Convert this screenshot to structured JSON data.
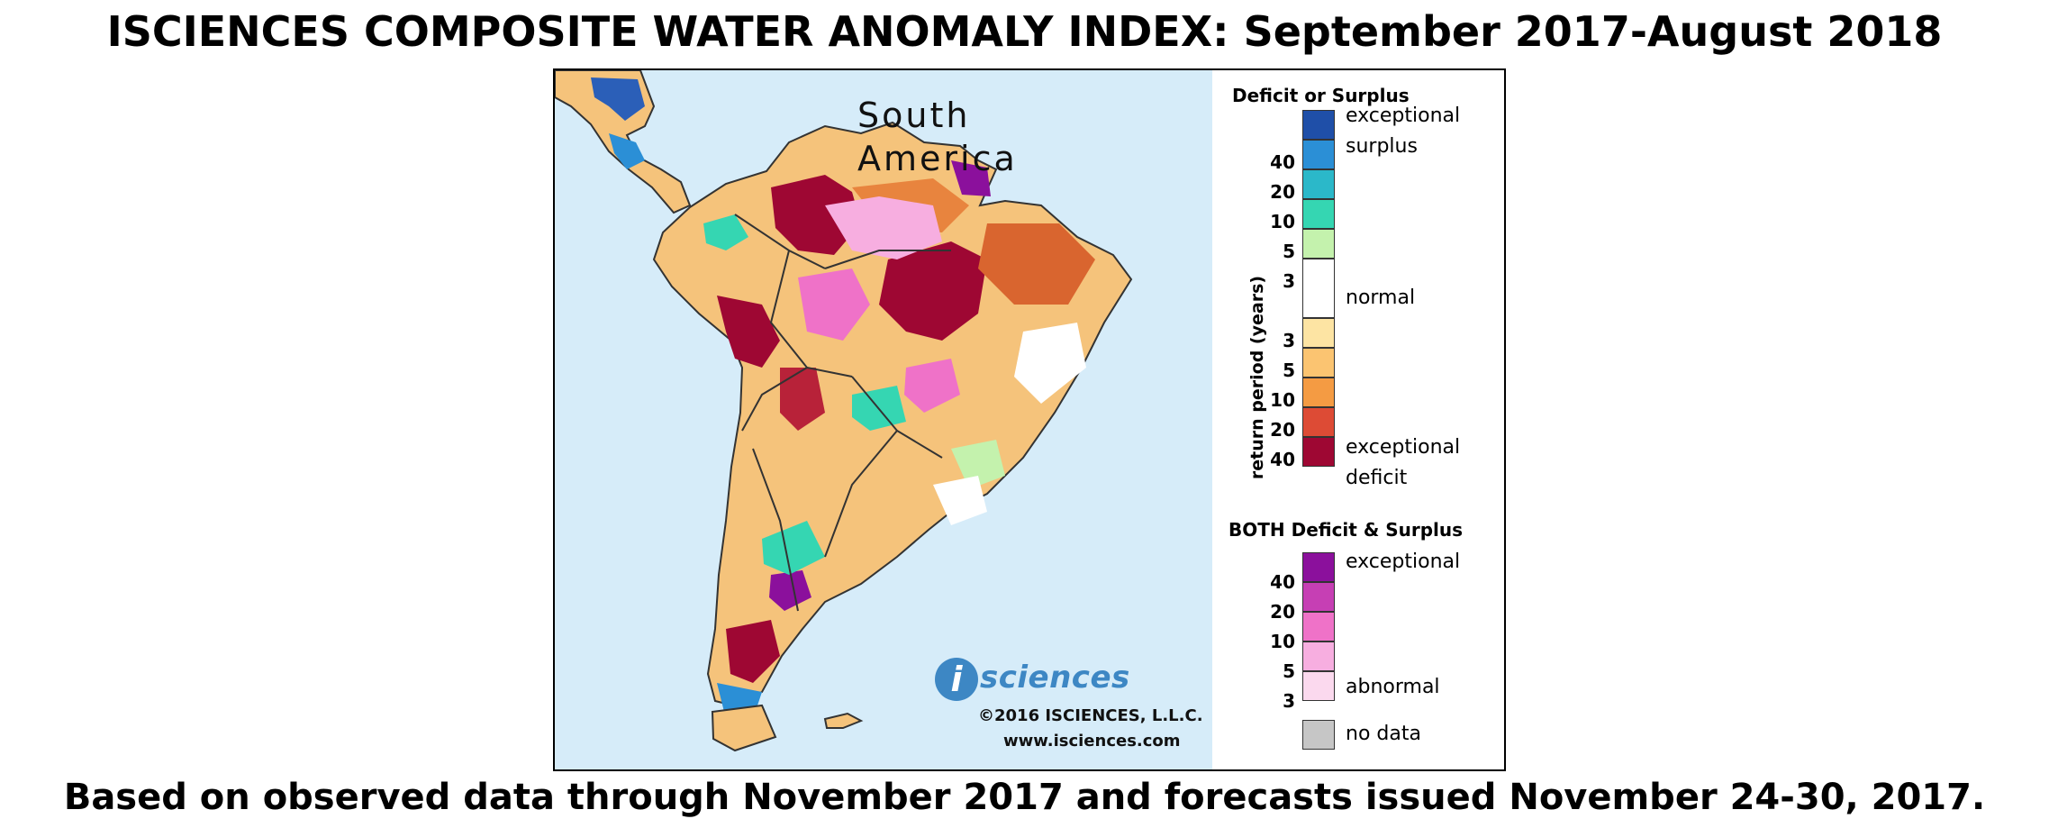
{
  "title": "ISCIENCES COMPOSITE WATER ANOMALY INDEX: September 2017-August 2018",
  "subtitle": "Based on observed data through November 2017 and forecasts issued November 24-30, 2017.",
  "map": {
    "region_line1": "South",
    "region_line2": "America",
    "logo_letter": "i",
    "logo_text": "sciences",
    "copyright": "©2016 ISCIENCES, L.L.C.",
    "website": "www.isciences.com"
  },
  "legend": {
    "deficit_surplus_title": "Deficit or Surplus",
    "axis_label": "return period (years)",
    "surplus_swatches": [
      {
        "color": "#1f4fa8",
        "label": ""
      },
      {
        "color": "#2b8fd6",
        "label": "40"
      },
      {
        "color": "#2bb8c9",
        "label": "20"
      },
      {
        "color": "#35d6b2",
        "label": "10"
      },
      {
        "color": "#c4f2ad",
        "label": "5"
      }
    ],
    "surplus_bottom_tick": "3",
    "normal_color": "#ffffff",
    "deficit_swatches": [
      {
        "color": "#fde4a3",
        "label": "3"
      },
      {
        "color": "#fbc471",
        "label": "5"
      },
      {
        "color": "#f49b43",
        "label": "10"
      },
      {
        "color": "#dd4b35",
        "label": "20"
      },
      {
        "color": "#9e0733",
        "label": "40"
      }
    ],
    "exceptional_surplus_line1": "exceptional",
    "exceptional_surplus_line2": "surplus",
    "normal_label": "normal",
    "exceptional_deficit_line1": "exceptional",
    "exceptional_deficit_line2": "deficit",
    "both_title": "BOTH Deficit & Surplus",
    "both_swatches": [
      {
        "color": "#8b109c",
        "label": "40"
      },
      {
        "color": "#c63fb4",
        "label": "20"
      },
      {
        "color": "#ef72c8",
        "label": "10"
      },
      {
        "color": "#f7aee0",
        "label": "5"
      },
      {
        "color": "#fbd9ee",
        "label": "3"
      }
    ],
    "both_top_label": "exceptional",
    "both_bottom_label": "abnormal",
    "no_data_color": "#c6c6c6",
    "no_data_label": "no data"
  },
  "colors": {
    "ocean": "#d6ecf9",
    "logo_blue": "#3d87c4"
  }
}
